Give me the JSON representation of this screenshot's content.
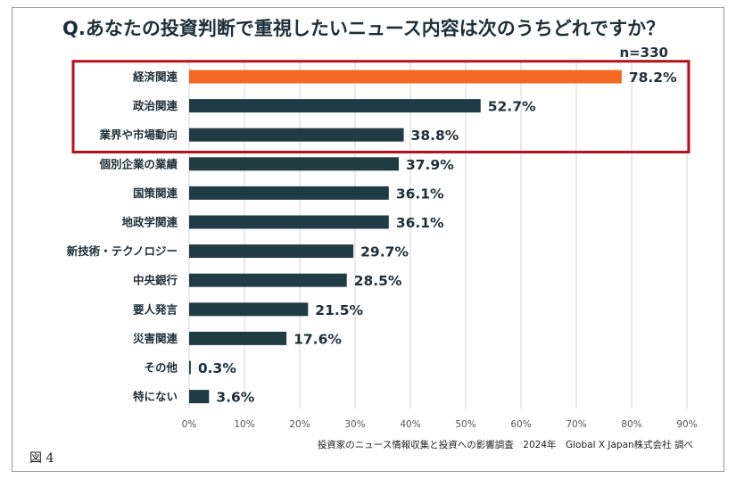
{
  "chart_data": {
    "type": "bar",
    "orientation": "horizontal",
    "title": "Q.あなたの投資判断で重視したいニュース内容は次のうちどれですか？",
    "sample_size": "n=330",
    "categories": [
      "経済関連",
      "政治関連",
      "業界や市場動向",
      "個別企業の業績",
      "国策関連",
      "地政学関連",
      "新技術・テクノロジー",
      "中央銀行",
      "要人発言",
      "災害関連",
      "その他",
      "特にない"
    ],
    "values": [
      78.2,
      52.7,
      38.8,
      37.9,
      36.1,
      36.1,
      29.7,
      28.5,
      21.5,
      17.6,
      0.3,
      3.6
    ],
    "value_labels": [
      "78.2%",
      "52.7%",
      "38.8%",
      "37.9%",
      "36.1%",
      "36.1%",
      "29.7%",
      "28.5%",
      "21.5%",
      "17.6%",
      "0.3%",
      "3.6%"
    ],
    "xlim": [
      0,
      90
    ],
    "x_ticks": [
      0,
      10,
      20,
      30,
      40,
      50,
      60,
      70,
      80,
      90
    ],
    "x_tick_labels": [
      "0%",
      "10%",
      "20%",
      "30%",
      "40%",
      "50%",
      "60%",
      "70%",
      "80%",
      "90%"
    ],
    "highlight_count": 3,
    "grid": true,
    "xlabel": "",
    "ylabel": ""
  },
  "colors": {
    "highlight_bar": "#f26a21",
    "default_bar": "#1f3b44",
    "highlight_box": "#b4121f",
    "grid": "#d4d4d4"
  },
  "source": "投資家のニュース情報収集と投資への影響調査　2024年　Global X Japan株式会社 調べ",
  "figure_label": "図 4"
}
